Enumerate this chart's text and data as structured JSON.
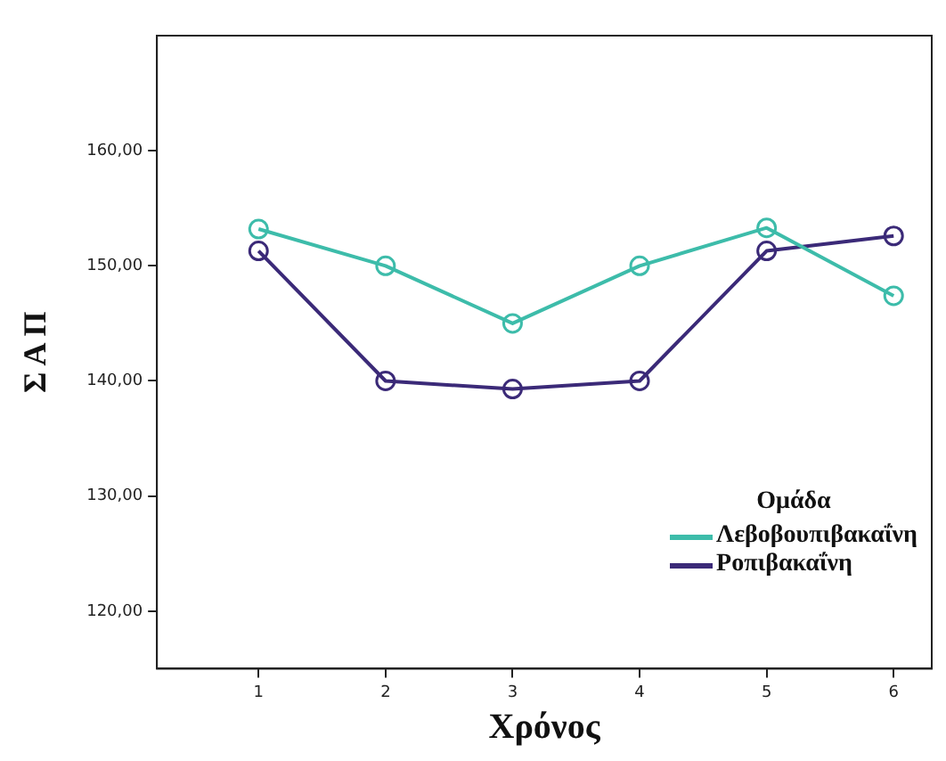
{
  "chart_data": {
    "type": "line",
    "xlabel": "Χρόνος",
    "ylabel": "Σ Α Π",
    "legend_title": "Ομάδα",
    "x": [
      1,
      2,
      3,
      4,
      5,
      6
    ],
    "series": [
      {
        "name": "Λεβοβουπιβακαΐνη",
        "color": "#3dbcaa",
        "values": [
          153.2,
          150,
          145,
          150,
          153.3,
          147.4
        ]
      },
      {
        "name": "Ροπιβακαΐνη",
        "color": "#3b2a78",
        "values": [
          151.3,
          140,
          139.3,
          140,
          151.3,
          152.6
        ]
      }
    ],
    "xlim": [
      0.2,
      6.3
    ],
    "xticks": [
      1,
      2,
      3,
      4,
      5,
      6
    ],
    "ylim": [
      115,
      170
    ],
    "yticks": [
      {
        "value": 120,
        "label": "120,00"
      },
      {
        "value": 130,
        "label": "130,00"
      },
      {
        "value": 140,
        "label": "140,00"
      },
      {
        "value": 150,
        "label": "150,00"
      },
      {
        "value": 160,
        "label": "160,00"
      }
    ],
    "grid": false,
    "legend": "bottom right",
    "marker": "circle",
    "line_style": "solid"
  }
}
